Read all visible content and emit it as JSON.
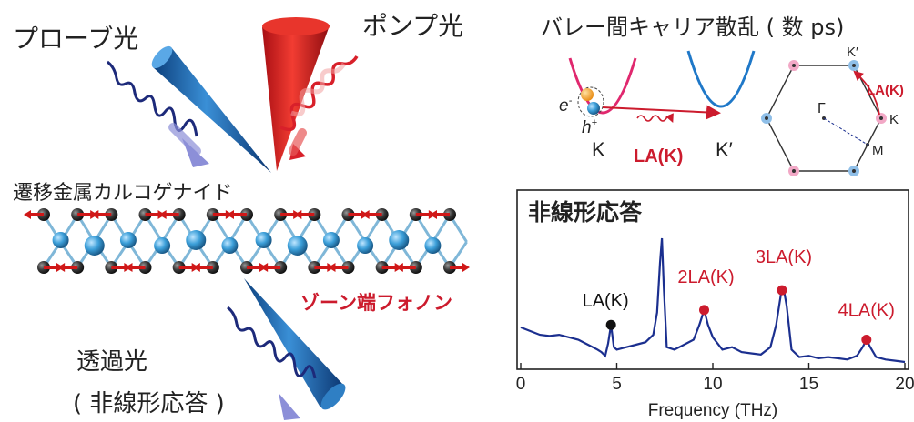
{
  "left": {
    "probe_label": "プローブ光",
    "pump_label": "ポンプ光",
    "material_label": "遷移金属カルコゲナイド",
    "phonon_label": "ゾーン端フォノン",
    "transmitted_label": "透過光",
    "nonlinear_label": "( 非線形応答 )"
  },
  "topright": {
    "title": "バレー間キャリア散乱 ( 数 ps)",
    "electron": "e",
    "electron_sup": "-",
    "hole": "h",
    "hole_sup": "+",
    "valley_K": "K",
    "valley_Kp": "K′",
    "la_label": "LA(K)",
    "bz_labels": {
      "gamma": "Γ",
      "K": "K",
      "Kp": "K′",
      "M": "M",
      "la": "LA(K)"
    }
  },
  "spectrum": {
    "title": "非線形応答",
    "annotations": [
      "LA(K)",
      "2LA(K)",
      "3LA(K)",
      "4LA(K)"
    ]
  },
  "colors": {
    "accent_red": "#cc1b2d",
    "spectrum_line": "#1b2f8f",
    "pink": "#e0286e",
    "blue": "#1f78c8"
  },
  "chart_data": {
    "type": "line",
    "title": "非線形応答",
    "xlabel": "Frequency (THz)",
    "ylabel": "",
    "xlim": [
      0,
      20
    ],
    "xticks": [
      0,
      5,
      10,
      15,
      20
    ],
    "tick_labels": [
      "0",
      "5",
      "10",
      "15",
      "20"
    ],
    "grid": false,
    "series": [
      {
        "x": [
          0,
          0.5,
          1,
          1.5,
          2,
          2.5,
          3,
          3.5,
          4,
          4.2,
          4.4,
          4.55,
          4.7,
          4.85,
          5,
          5.5,
          6,
          6.5,
          6.9,
          7.1,
          7.25,
          7.35,
          7.45,
          7.6,
          8,
          8.5,
          9,
          9.3,
          9.55,
          9.75,
          10,
          10.5,
          11,
          11.5,
          12,
          12.5,
          13,
          13.3,
          13.55,
          13.7,
          13.85,
          14.1,
          14.5,
          15,
          15.5,
          16,
          16.5,
          17,
          17.5,
          17.8,
          18.0,
          18.2,
          18.5,
          19,
          19.5,
          20
        ],
        "y": [
          0.28,
          0.25,
          0.22,
          0.21,
          0.22,
          0.2,
          0.18,
          0.14,
          0.1,
          0.08,
          0.05,
          0.15,
          0.3,
          0.12,
          0.1,
          0.12,
          0.14,
          0.16,
          0.22,
          0.4,
          0.8,
          1.0,
          0.6,
          0.12,
          0.1,
          0.14,
          0.18,
          0.3,
          0.42,
          0.3,
          0.2,
          0.1,
          0.12,
          0.08,
          0.07,
          0.06,
          0.12,
          0.3,
          0.55,
          0.58,
          0.45,
          0.1,
          0.04,
          0.05,
          0.03,
          0.04,
          0.03,
          0.02,
          0.05,
          0.12,
          0.18,
          0.12,
          0.04,
          0.02,
          0.01,
          0.0
        ]
      }
    ],
    "markers": [
      {
        "label": "LA(K)",
        "x": 4.7,
        "y": 0.3,
        "color": "#111111"
      },
      {
        "label": "2LA(K)",
        "x": 9.55,
        "y": 0.42,
        "color": "#cc1b2d"
      },
      {
        "label": "3LA(K)",
        "x": 13.6,
        "y": 0.58,
        "color": "#cc1b2d"
      },
      {
        "label": "4LA(K)",
        "x": 18.0,
        "y": 0.18,
        "color": "#cc1b2d"
      }
    ]
  }
}
